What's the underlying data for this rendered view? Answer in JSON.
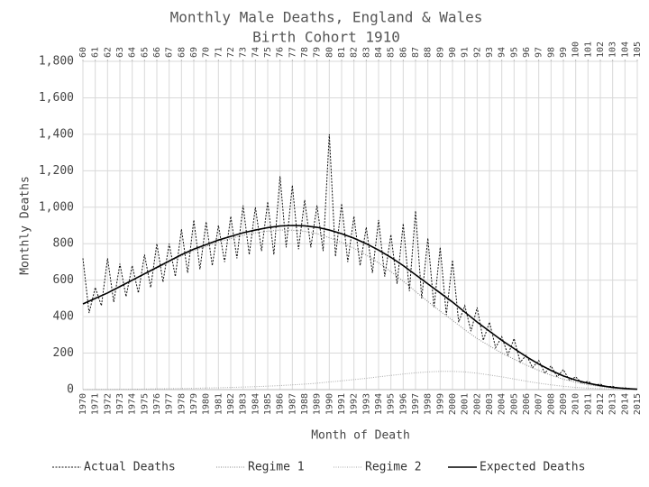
{
  "chart_data": {
    "type": "line",
    "title": "Monthly Male Deaths, England & Wales",
    "subtitle": "Birth Cohort 1910",
    "xlabel": "Month of Death",
    "ylabel": "Monthly Deaths",
    "xlim": [
      1970,
      2015
    ],
    "xticks": [
      1970,
      1971,
      1972,
      1973,
      1974,
      1975,
      1976,
      1977,
      1978,
      1979,
      1980,
      1981,
      1982,
      1983,
      1984,
      1985,
      1986,
      1987,
      1988,
      1989,
      1990,
      1991,
      1992,
      1993,
      1994,
      1995,
      1996,
      1997,
      1998,
      1999,
      2000,
      2001,
      2002,
      2003,
      2004,
      2005,
      2006,
      2007,
      2008,
      2009,
      2010,
      2011,
      2012,
      2013,
      2014,
      2015
    ],
    "x2lim": [
      60,
      105
    ],
    "x2ticks": [
      60,
      61,
      62,
      63,
      64,
      65,
      66,
      67,
      68,
      69,
      70,
      71,
      72,
      73,
      74,
      75,
      76,
      77,
      78,
      79,
      80,
      81,
      82,
      83,
      84,
      85,
      86,
      87,
      88,
      89,
      90,
      91,
      92,
      93,
      94,
      95,
      96,
      97,
      98,
      99,
      100,
      101,
      102,
      103,
      104,
      105
    ],
    "ylim": [
      0,
      1800
    ],
    "yticks": [
      0,
      200,
      400,
      600,
      800,
      {
        "value": 1000,
        "label": "1,000"
      },
      {
        "value": 1200,
        "label": "1,200"
      },
      {
        "value": 1400,
        "label": "1,400"
      },
      {
        "value": 1600,
        "label": "1,600"
      },
      {
        "value": 1800,
        "label": "1,800"
      }
    ],
    "grid": true,
    "legend": "bottom",
    "series": [
      {
        "name": "Actual Deaths",
        "color": "#111111",
        "dash": "2,1.5",
        "width": 1,
        "x": [
          1970,
          1970.5,
          1971,
          1971.5,
          1972,
          1972.5,
          1973,
          1973.5,
          1974,
          1974.5,
          1975,
          1975.5,
          1976,
          1976.5,
          1977,
          1977.5,
          1978,
          1978.5,
          1979,
          1979.5,
          1980,
          1980.5,
          1981,
          1981.5,
          1982,
          1982.5,
          1983,
          1983.5,
          1984,
          1984.5,
          1985,
          1985.5,
          1986,
          1986.5,
          1987,
          1987.5,
          1988,
          1988.5,
          1989,
          1989.5,
          1990,
          1990.5,
          1991,
          1991.5,
          1992,
          1992.5,
          1993,
          1993.5,
          1994,
          1994.5,
          1995,
          1995.5,
          1996,
          1996.5,
          1997,
          1997.5,
          1998,
          1998.5,
          1999,
          1999.5,
          2000,
          2000.5,
          2001,
          2001.5,
          2002,
          2002.5,
          2003,
          2003.5,
          2004,
          2004.5,
          2005,
          2005.5,
          2006,
          2006.5,
          2007,
          2007.5,
          2008,
          2008.5,
          2009,
          2009.5,
          2010,
          2010.5,
          2011,
          2011.5,
          2012,
          2012.5,
          2013,
          2013.5,
          2014,
          2014.5,
          2015
        ],
        "values": [
          720,
          420,
          560,
          460,
          720,
          480,
          690,
          510,
          680,
          530,
          740,
          560,
          800,
          590,
          800,
          620,
          880,
          640,
          930,
          660,
          920,
          680,
          900,
          700,
          950,
          720,
          1010,
          740,
          1000,
          760,
          1030,
          740,
          1170,
          780,
          1120,
          770,
          1040,
          780,
          1010,
          760,
          1400,
          730,
          1020,
          700,
          950,
          680,
          890,
          640,
          930,
          620,
          850,
          580,
          910,
          540,
          980,
          500,
          830,
          450,
          780,
          410,
          710,
          370,
          460,
          320,
          450,
          270,
          370,
          230,
          290,
          190,
          280,
          150,
          190,
          120,
          160,
          90,
          130,
          70,
          110,
          50,
          70,
          35,
          45,
          25,
          30,
          15,
          18,
          8,
          10,
          4,
          3
        ]
      },
      {
        "name": "Regime 1",
        "color": "#888888",
        "dash": "1,1.5",
        "width": 1,
        "x": [
          1970,
          1971,
          1972,
          1973,
          1974,
          1975,
          1976,
          1977,
          1978,
          1979,
          1980,
          1981,
          1982,
          1983,
          1984,
          1985,
          1986,
          1987,
          1988,
          1989,
          1990,
          1991,
          1992,
          1993,
          1994,
          1995,
          1996,
          1997,
          1998,
          1999,
          2000,
          2001,
          2002,
          2003,
          2004,
          2005,
          2006,
          2007,
          2008,
          2009,
          2010,
          2011,
          2012,
          2013,
          2014,
          2015
        ],
        "values": [
          470,
          499,
          529,
          563,
          598,
          632,
          666,
          700,
          734,
          763,
          786,
          810,
          828,
          846,
          859,
          869,
          875,
          874,
          868,
          855,
          833,
          807,
          775,
          738,
          695,
          647,
          595,
          538,
          483,
          430,
          380,
          328,
          280,
          240,
          200,
          167,
          134,
          105,
          79,
          57,
          40,
          27,
          17,
          9,
          5,
          2
        ]
      },
      {
        "name": "Regime 2",
        "color": "#aaaaaa",
        "dash": "1,1.5",
        "width": 1,
        "x": [
          1970,
          1971,
          1972,
          1973,
          1974,
          1975,
          1976,
          1977,
          1978,
          1979,
          1980,
          1981,
          1982,
          1983,
          1984,
          1985,
          1986,
          1987,
          1988,
          1989,
          1990,
          1991,
          1992,
          1993,
          1994,
          1995,
          1996,
          1997,
          1998,
          1999,
          2000,
          2001,
          2002,
          2003,
          2004,
          2005,
          2006,
          2007,
          2008,
          2009,
          2010,
          2011,
          2012,
          2013,
          2014,
          2015
        ],
        "values": [
          0,
          1,
          1,
          2,
          2,
          3,
          4,
          5,
          6,
          7,
          9,
          10,
          12,
          14,
          16,
          19,
          22,
          26,
          30,
          35,
          42,
          48,
          55,
          62,
          70,
          78,
          85,
          92,
          97,
          100,
          100,
          97,
          90,
          80,
          70,
          58,
          46,
          35,
          26,
          18,
          12,
          8,
          5,
          3,
          1,
          0
        ]
      },
      {
        "name": "Expected Deaths",
        "color": "#000000",
        "dash": "",
        "width": 1.6,
        "x": [
          1970,
          1971,
          1972,
          1973,
          1974,
          1975,
          1976,
          1977,
          1978,
          1979,
          1980,
          1981,
          1982,
          1983,
          1984,
          1985,
          1986,
          1987,
          1988,
          1989,
          1990,
          1991,
          1992,
          1993,
          1994,
          1995,
          1996,
          1997,
          1998,
          1999,
          2000,
          2001,
          2002,
          2003,
          2004,
          2005,
          2006,
          2007,
          2008,
          2009,
          2010,
          2011,
          2012,
          2013,
          2014,
          2015
        ],
        "values": [
          470,
          500,
          530,
          565,
          600,
          635,
          670,
          705,
          740,
          770,
          795,
          820,
          840,
          860,
          875,
          888,
          897,
          900,
          898,
          890,
          875,
          855,
          830,
          800,
          765,
          725,
          680,
          630,
          580,
          530,
          480,
          425,
          370,
          320,
          270,
          225,
          180,
          140,
          105,
          75,
          52,
          35,
          22,
          12,
          6,
          2
        ]
      }
    ]
  }
}
